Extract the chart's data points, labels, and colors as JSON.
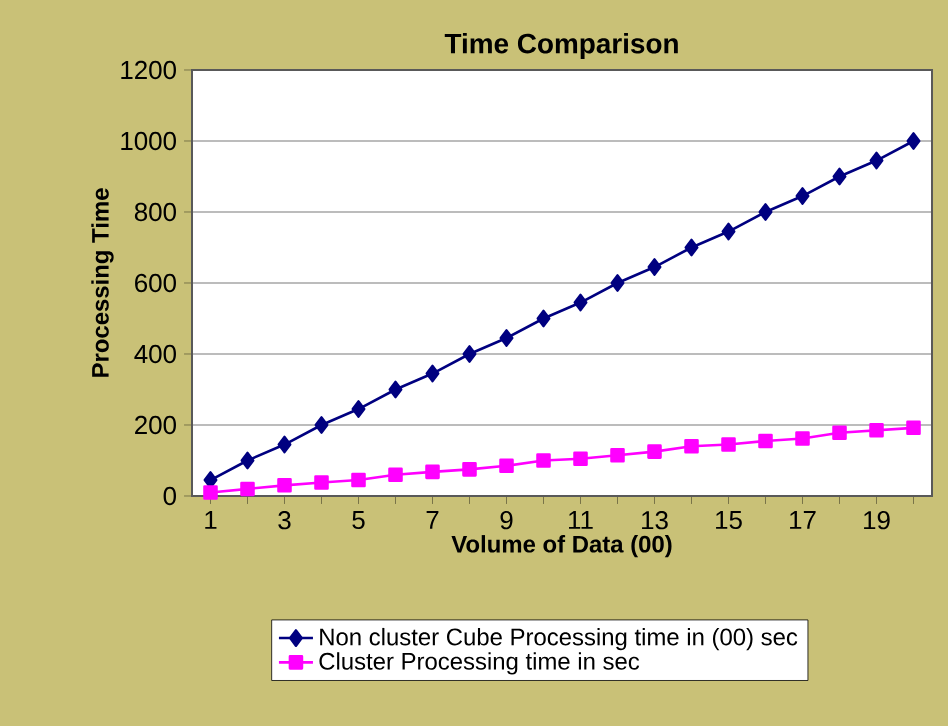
{
  "chart_data": {
    "type": "line",
    "title": "Time  Comparison",
    "xlabel": "Volume of Data (00)",
    "ylabel": "Processing Time",
    "categories": [
      "1",
      null,
      "3",
      null,
      "5",
      null,
      "7",
      null,
      "9",
      null,
      "11",
      null,
      "13",
      null,
      "15",
      null,
      "17",
      null,
      "19",
      null
    ],
    "series": [
      {
        "name": "Non cluster Cube Processing time in (00) sec",
        "color": "#000080",
        "marker": "diamond",
        "values": [
          45,
          100,
          145,
          200,
          245,
          300,
          345,
          400,
          445,
          500,
          545,
          600,
          645,
          700,
          745,
          800,
          845,
          900,
          945,
          1000
        ]
      },
      {
        "name": "Cluster Processing time in sec",
        "color": "#ff00ff",
        "marker": "square",
        "values": [
          10,
          20,
          30,
          38,
          45,
          60,
          68,
          75,
          85,
          100,
          105,
          115,
          125,
          140,
          145,
          155,
          162,
          178,
          185,
          192
        ]
      }
    ],
    "ylim": [
      0,
      1200
    ],
    "yticks": [
      0,
      200,
      400,
      600,
      800,
      1000,
      1200
    ],
    "grid": "y",
    "legend": "bottom",
    "line_style": "solid"
  }
}
